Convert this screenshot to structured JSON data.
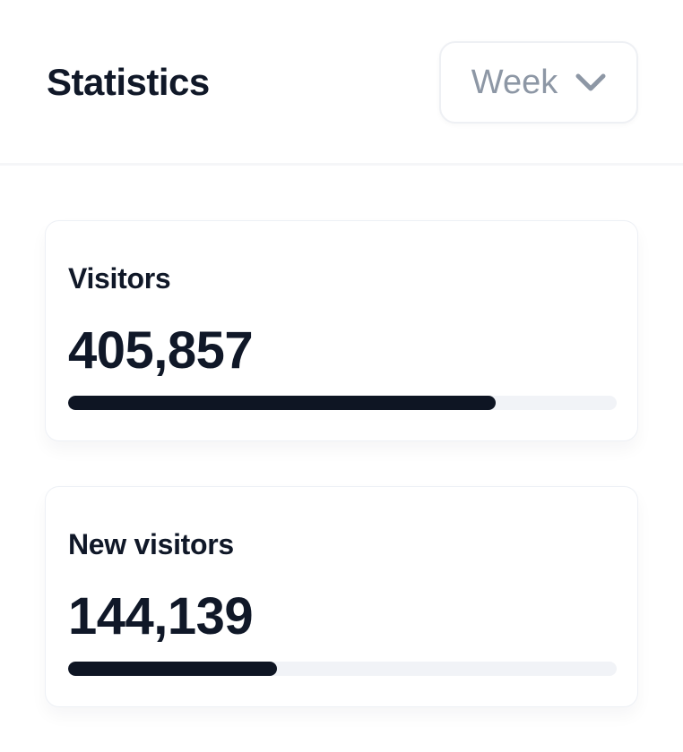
{
  "header": {
    "title": "Statistics",
    "period_selector": {
      "value": "Week",
      "icon": "chevron-down-icon"
    }
  },
  "stats": [
    {
      "label": "Visitors",
      "value": "405,857",
      "progress_percent": 78
    },
    {
      "label": "New visitors",
      "value": "144,139",
      "progress_percent": 38
    }
  ],
  "colors": {
    "text_dark": "#101828",
    "muted_gray": "#8d97a5",
    "bar_fill": "#0e1523",
    "bar_track": "#f1f3f7",
    "card_border": "#edf0f5",
    "divider": "#f5f6f8"
  }
}
